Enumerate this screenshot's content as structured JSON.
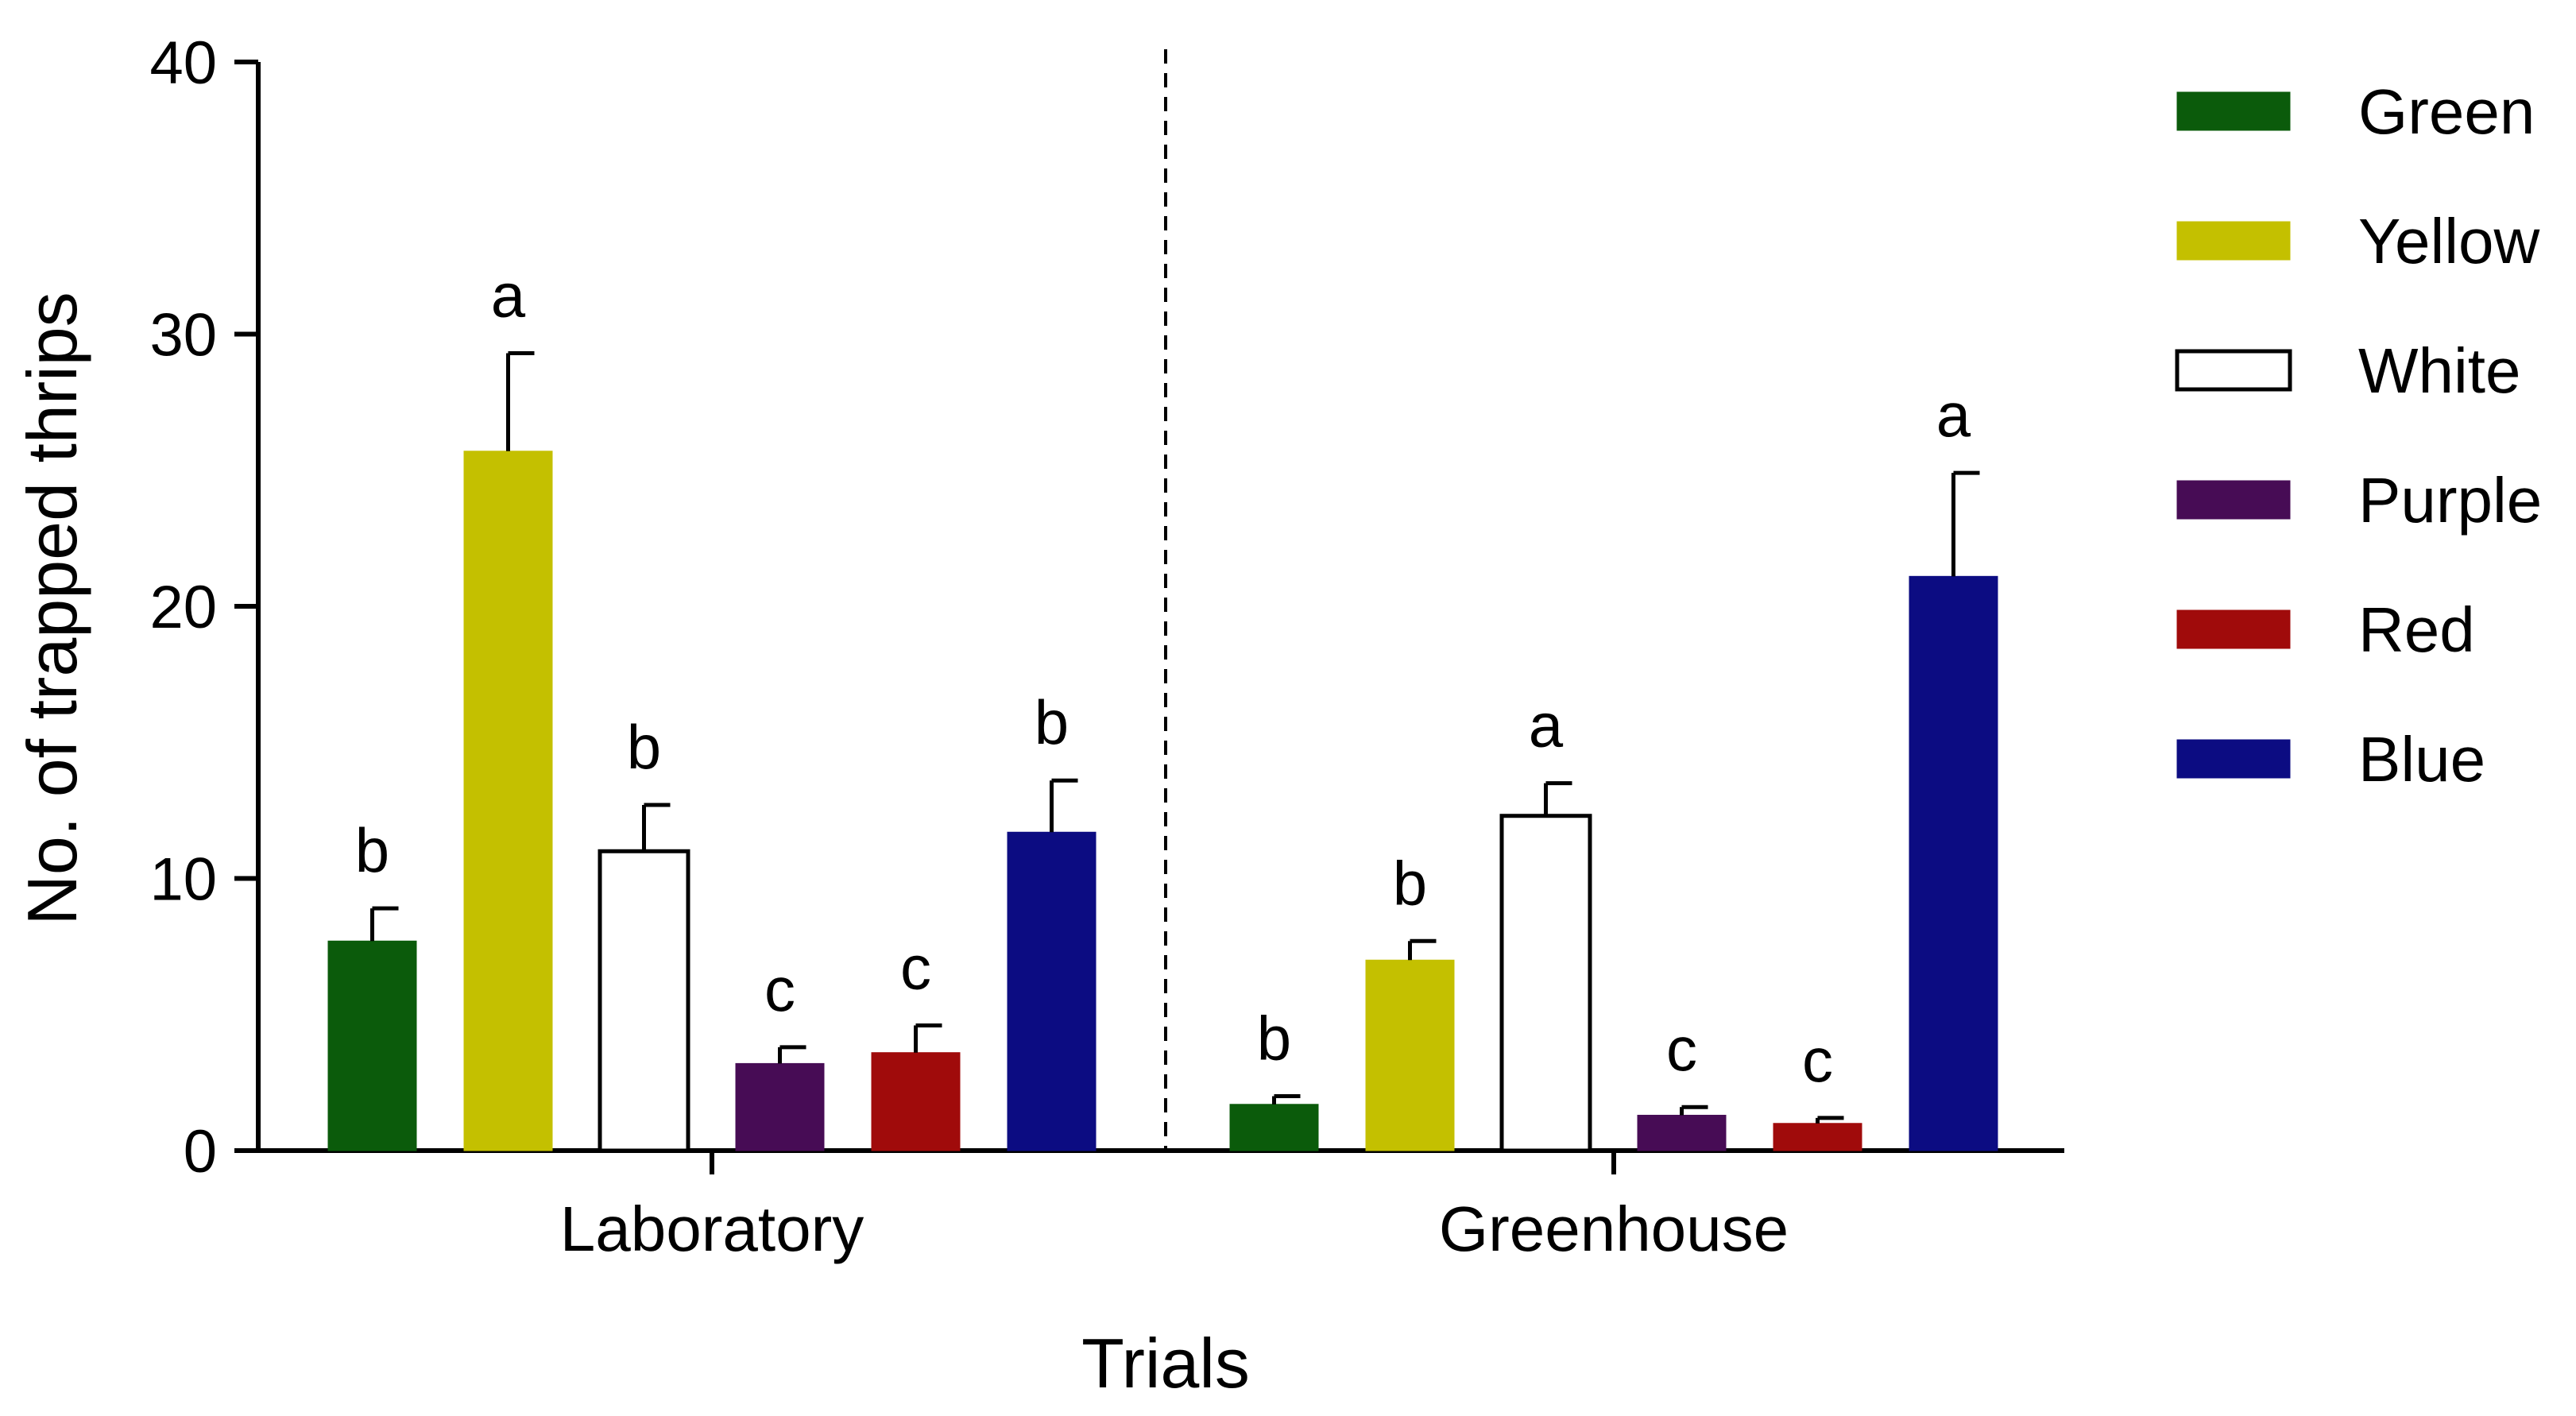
{
  "chart_data": {
    "type": "bar",
    "title": "",
    "xlabel": "Trials",
    "ylabel": "No. of trapped thrips",
    "ylim": [
      0,
      40
    ],
    "yticks": [
      0,
      10,
      20,
      30,
      40
    ],
    "categories": [
      "Laboratory",
      "Greenhouse"
    ],
    "series": [
      {
        "name": "Green",
        "color": "#0b5b0b",
        "values": [
          7.7,
          1.7
        ],
        "errors": [
          1.2,
          0.3
        ],
        "letters": [
          "b",
          "b"
        ]
      },
      {
        "name": "Yellow",
        "color": "#c4c000",
        "values": [
          25.7,
          7.0
        ],
        "errors": [
          3.6,
          0.7
        ],
        "letters": [
          "a",
          "b"
        ]
      },
      {
        "name": "White",
        "color": "#ffffff",
        "values": [
          11.0,
          12.3
        ],
        "errors": [
          1.7,
          1.2
        ],
        "letters": [
          "b",
          "a"
        ]
      },
      {
        "name": "Purple",
        "color": "#470c55",
        "values": [
          3.2,
          1.3
        ],
        "errors": [
          0.6,
          0.3
        ],
        "letters": [
          "c",
          "c"
        ]
      },
      {
        "name": "Red",
        "color": "#a00b0b",
        "values": [
          3.6,
          1.0
        ],
        "errors": [
          1.0,
          0.2
        ],
        "letters": [
          "c",
          "c"
        ]
      },
      {
        "name": "Blue",
        "color": "#0c0c82",
        "values": [
          11.7,
          21.1
        ],
        "errors": [
          1.9,
          3.8
        ],
        "letters": [
          "b",
          "a"
        ]
      }
    ],
    "divider": "dashed vertical line between trials",
    "legend_position": "right",
    "grid": false
  }
}
